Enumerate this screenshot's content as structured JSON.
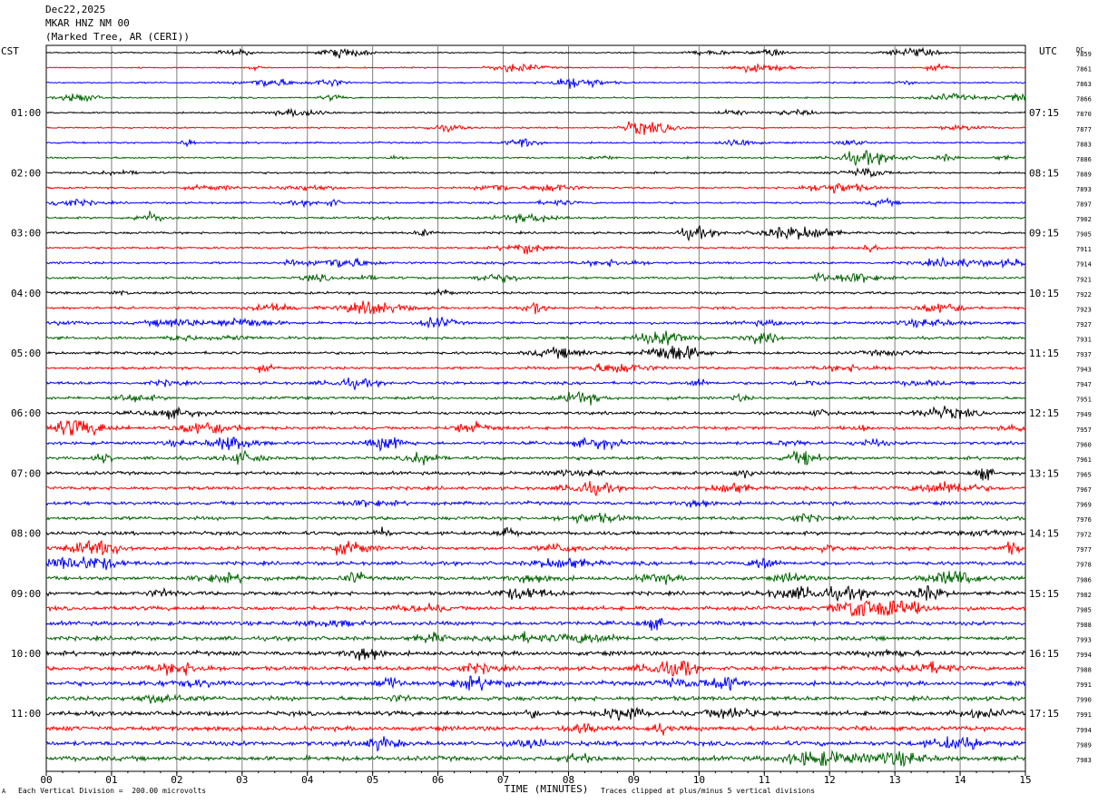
{
  "header": {
    "date": "Dec22,2025",
    "station": "MKAR HNZ NM 00",
    "location": "(Marked Tree, AR (CERI))"
  },
  "footer": {
    "scale_note": "Each Vertical Division =  200.00 microvolts",
    "clip_note": "Traces clipped at plus/minus 5 vertical divisions",
    "corner_mark": "A"
  },
  "colors": {
    "trace_cycle": [
      "#000000",
      "#ff0000",
      "#0000ff",
      "#006400"
    ],
    "grid": "#808080"
  },
  "chart_data": {
    "type": "line",
    "title": "",
    "xlabel": "TIME (MINUTES)",
    "left_axis_label": "CST",
    "right_axis_label": "UTC",
    "dc_label": "DC",
    "xlim": [
      0,
      15
    ],
    "x_tick_labels": [
      "00",
      "01",
      "02",
      "03",
      "04",
      "05",
      "06",
      "07",
      "08",
      "09",
      "10",
      "11",
      "12",
      "13",
      "14",
      "15"
    ],
    "left_hour_labels": [
      "01:00",
      "02:00",
      "03:00",
      "04:00",
      "05:00",
      "06:00",
      "07:00",
      "08:00",
      "09:00",
      "10:00",
      "11:00"
    ],
    "right_hour_labels": [
      "07:15",
      "08:15",
      "09:15",
      "10:15",
      "11:15",
      "12:15",
      "13:15",
      "14:15",
      "15:15",
      "16:15",
      "17:15"
    ],
    "dc_offsets": [
      7859,
      7861,
      7863,
      7866,
      7870,
      7877,
      7883,
      7886,
      7889,
      7893,
      7897,
      7902,
      7905,
      7911,
      7914,
      7921,
      7922,
      7923,
      7927,
      7931,
      7937,
      7943,
      7947,
      7951,
      7949,
      7957,
      7960,
      7961,
      7965,
      7967,
      7969,
      7976,
      7972,
      7977,
      7978,
      7986,
      7982,
      7985,
      7988,
      7993,
      7994,
      7988,
      7991,
      7990,
      7991,
      7994,
      7989,
      7983
    ],
    "grid": true,
    "trace_count": 48,
    "minutes_per_trace": 15
  }
}
